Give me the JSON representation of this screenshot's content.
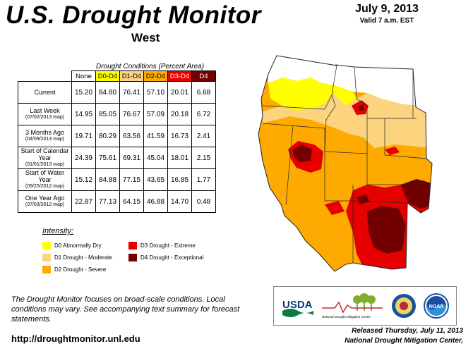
{
  "header": {
    "title": "U.S. Drought Monitor",
    "region": "West",
    "date": "July 9, 2013",
    "valid": "Valid 7 a.m. EST"
  },
  "table": {
    "caption": "Drought Conditions (Percent Area)",
    "columns": [
      {
        "label": "None",
        "color": "#ffffff"
      },
      {
        "label": "D0-D4",
        "color": "#ffff00"
      },
      {
        "label": "D1-D4",
        "color": "#fcd37f"
      },
      {
        "label": "D2-D4",
        "color": "#ffaa00"
      },
      {
        "label": "D3-D4",
        "color": "#e60000"
      },
      {
        "label": "D4",
        "color": "#730000"
      }
    ],
    "rows": [
      {
        "label": "Current",
        "sub": "",
        "values": [
          "15.20",
          "84.80",
          "76.41",
          "57.10",
          "20.01",
          "6.68"
        ]
      },
      {
        "label": "Last Week",
        "sub": "(07/02/2013 map)",
        "values": [
          "14.95",
          "85.05",
          "76.67",
          "57.09",
          "20.18",
          "6.72"
        ]
      },
      {
        "label": "3 Months Ago",
        "sub": "(04/09/2013 map)",
        "values": [
          "19.71",
          "80.29",
          "63.56",
          "41.59",
          "16.73",
          "2.41"
        ]
      },
      {
        "label": "Start of Calendar Year",
        "sub": "(01/01/2013 map)",
        "values": [
          "24.39",
          "75.61",
          "69.31",
          "45.04",
          "18.01",
          "2.15"
        ]
      },
      {
        "label": "Start of Water Year",
        "sub": "(09/25/2012 map)",
        "values": [
          "15.12",
          "84.88",
          "77.15",
          "43.65",
          "16.85",
          "1.77"
        ]
      },
      {
        "label": "One Year Ago",
        "sub": "(07/03/2012 map)",
        "values": [
          "22.87",
          "77.13",
          "64.15",
          "46.88",
          "14.70",
          "0.48"
        ]
      }
    ]
  },
  "legend": {
    "title": "Intensity:",
    "items": [
      {
        "label": "D0 Abnormally Dry",
        "color": "#ffff00"
      },
      {
        "label": "D1 Drought - Moderate",
        "color": "#fcd37f"
      },
      {
        "label": "D2 Drought - Severe",
        "color": "#ffaa00"
      },
      {
        "label": "D3 Drought - Extreme",
        "color": "#e60000"
      },
      {
        "label": "D4 Drought - Exceptional",
        "color": "#730000"
      }
    ]
  },
  "footer": {
    "description": "The Drought Monitor focuses on broad-scale conditions. Local conditions may vary. See accompanying text summary for forecast statements.",
    "url": "http://droughtmonitor.unl.edu",
    "released": "Released Thursday, July 11, 2013",
    "author": "National Drought Mitigation Center,"
  },
  "logos": {
    "usda": "USDA",
    "ndmc": "National Drought Mitigation Center",
    "noaa": "NOAA"
  }
}
